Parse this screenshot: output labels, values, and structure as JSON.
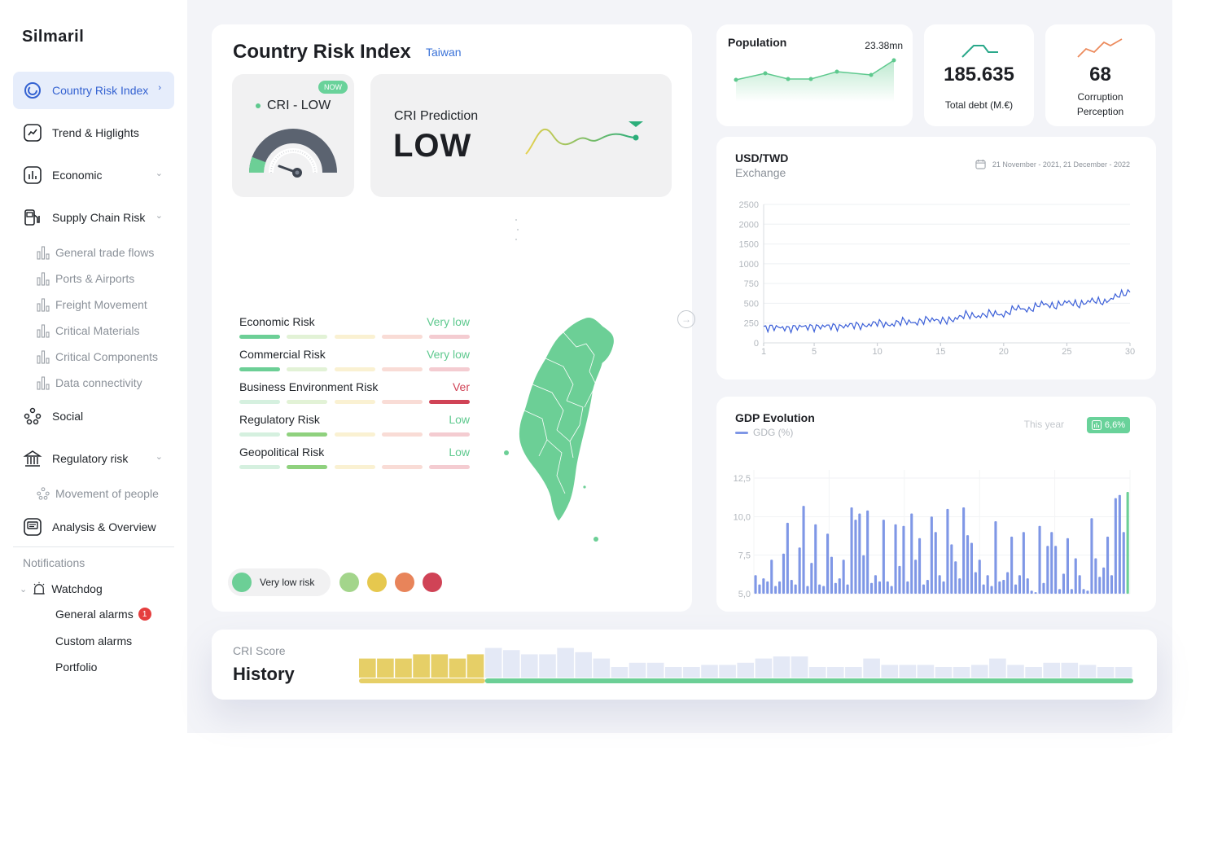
{
  "app": {
    "logo": "Silmaril"
  },
  "sidebar": {
    "items": [
      {
        "label": "Country Risk Index"
      },
      {
        "label": "Trend & Higlights"
      },
      {
        "label": "Economic"
      },
      {
        "label": "Supply Chain Risk"
      },
      {
        "label": "Social"
      },
      {
        "label": "Regulatory risk"
      },
      {
        "label": "Analysis & Overview"
      }
    ],
    "supply_sub": [
      "General trade flows",
      "Ports & Airports",
      "Freight Movement",
      "Critical Materials",
      "Critical Components",
      "Data connectivity"
    ],
    "regulatory_sub": [
      "Movement of people"
    ],
    "notifications_title": "Notifications",
    "watchdog": "Watchdog",
    "alarms": [
      {
        "label": "General alarms",
        "badge": "1"
      },
      {
        "label": "Custom alarms"
      },
      {
        "label": "Portfolio"
      }
    ]
  },
  "cri": {
    "title": "Country Risk Index",
    "country": "Taiwan",
    "now_badge": "NOW",
    "gauge_label": "CRI - LOW",
    "prediction_label": "CRI Prediction",
    "prediction_value": "LOW",
    "risks": [
      {
        "name": "Economic Risk",
        "level": "Very low",
        "active": 0
      },
      {
        "name": "Commercial Risk",
        "level": "Very low",
        "active": 0
      },
      {
        "name": "Business Environment Risk",
        "level": "Ver",
        "active": 4
      },
      {
        "name": "Regulatory Risk",
        "level": "Low",
        "active": 1
      },
      {
        "name": "Geopolitical Risk",
        "level": "Low",
        "active": 1
      }
    ],
    "legend_label": "Very low risk",
    "colors": {
      "very_low": "#6ccf96",
      "low": "#a3d58b",
      "medium": "#e6c84e",
      "high": "#e8845a",
      "very_high": "#d04356"
    }
  },
  "population": {
    "title": "Population",
    "value": "23.38mn"
  },
  "debt": {
    "value": "185.635",
    "label": "Total debt (M.€)"
  },
  "corruption": {
    "value": "68",
    "label_line1": "Corruption",
    "label_line2": "Perception"
  },
  "usd": {
    "title": "USD/TWD",
    "subtitle": "Exchange",
    "date_range": "21  November - 2021, 21 December - 2022"
  },
  "gdp": {
    "title": "GDP Evolution",
    "legend": "GDG (%)",
    "this_year": "This year",
    "badge": "6,6%"
  },
  "history": {
    "subtitle": "CRI Score",
    "title": "History"
  },
  "chart_data": [
    {
      "type": "line",
      "title": "USD/TWD",
      "ylim": [
        0,
        2500
      ],
      "y_ticks": [
        0,
        250,
        500,
        750,
        1000,
        1500,
        2000,
        2500
      ],
      "x_ticks": [
        1,
        5,
        10,
        15,
        20,
        25,
        30
      ],
      "x": [
        1,
        2,
        3,
        4,
        5,
        6,
        7,
        8,
        9,
        10,
        11,
        12,
        13,
        14,
        15,
        16,
        17,
        18,
        19,
        20,
        21,
        22,
        23,
        24,
        25,
        26,
        27,
        28,
        29,
        30
      ],
      "series": [
        {
          "values": [
            190,
            200,
            180,
            210,
            195,
            215,
            200,
            230,
            210,
            260,
            220,
            280,
            250,
            300,
            280,
            290,
            360,
            330,
            380,
            350,
            450,
            410,
            500,
            460,
            520,
            480,
            540,
            510,
            600,
            640
          ]
        }
      ]
    },
    {
      "type": "bar",
      "title": "GDP Evolution",
      "ylim": [
        5.0,
        12.5
      ],
      "y_ticks": [
        "5,0",
        "7,5",
        "10,0",
        "12,5"
      ],
      "series": [
        {
          "name": "GDG (%)",
          "values": [
            6.2,
            5.6,
            6.0,
            5.8,
            7.2,
            5.5,
            5.8,
            7.6,
            9.6,
            5.9,
            5.6,
            8.0,
            10.7,
            5.5,
            7.0,
            9.5,
            5.6,
            5.5,
            8.9,
            7.4,
            5.7,
            6.0,
            7.2,
            5.6,
            10.6,
            9.8,
            10.2,
            7.5,
            10.4,
            5.7,
            6.2,
            5.8,
            9.8,
            5.8,
            5.5,
            9.5,
            6.8,
            9.4,
            5.8,
            10.2,
            7.2,
            8.6,
            5.6,
            5.9,
            10.0,
            9.0,
            6.2,
            5.8,
            10.5,
            8.2,
            7.1,
            6.0,
            10.6,
            8.8,
            8.3,
            6.4,
            7.2,
            5.6,
            6.2,
            5.5,
            9.7,
            5.8,
            5.9,
            6.4,
            8.7,
            5.6,
            6.2,
            9.0,
            6.0,
            5.2,
            5.1,
            9.4,
            5.7,
            8.1,
            9.0,
            8.1,
            5.3,
            6.3,
            8.6,
            5.3,
            7.3,
            6.2,
            5.3,
            5.2,
            9.9,
            7.3,
            6.1,
            6.7,
            8.7,
            6.2,
            11.2,
            11.4,
            9.0,
            11.6
          ]
        }
      ]
    },
    {
      "type": "bar",
      "title": "CRI Score History",
      "series": [
        {
          "name": "history",
          "values": [
            0.9,
            0.9,
            0.9,
            1.1,
            1.1,
            0.9,
            1.1,
            1.4,
            1.3,
            1.1,
            1.1,
            1.4,
            1.2,
            0.9,
            0.5,
            0.7,
            0.7,
            0.5,
            0.5,
            0.6,
            0.6,
            0.7,
            0.9,
            1.0,
            1.0,
            0.5,
            0.5,
            0.5,
            0.9,
            0.6,
            0.6,
            0.6,
            0.5,
            0.5,
            0.6,
            0.9,
            0.6,
            0.5,
            0.7,
            0.7,
            0.6,
            0.5,
            0.5
          ]
        }
      ],
      "highlight_count": 7,
      "highlight_color": "#e6cf67",
      "base_color": "#e4e9f6"
    }
  ]
}
